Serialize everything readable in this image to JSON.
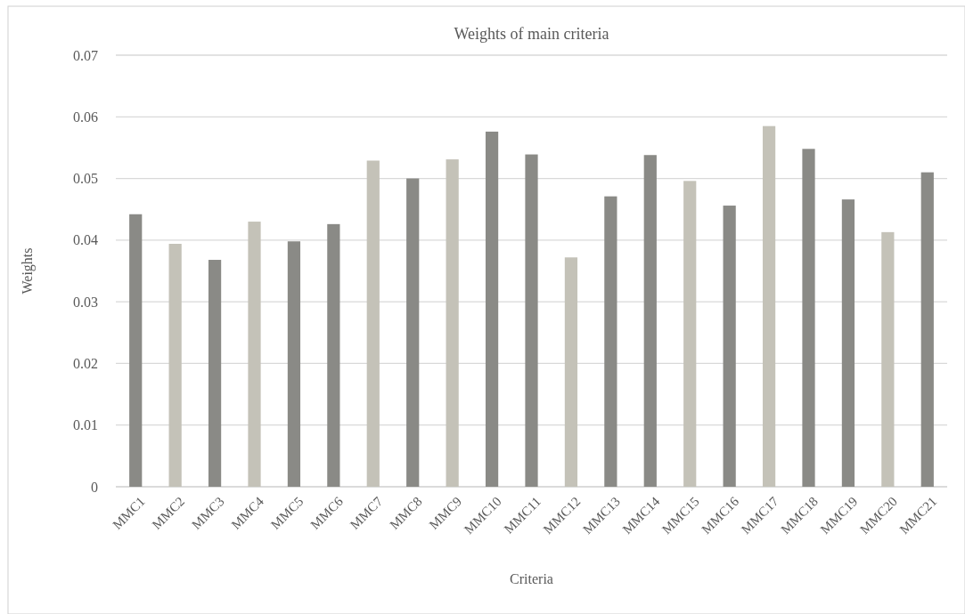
{
  "chart_data": {
    "type": "bar",
    "title": "Weights of main criteria",
    "xlabel": "Criteria",
    "ylabel": "Weights",
    "categories": [
      "MMC1",
      "MMC2",
      "MMC3",
      "MMC4",
      "MMC5",
      "MMC6",
      "MMC7",
      "MMC8",
      "MMC9",
      "MMC10",
      "MMC11",
      "MMC12",
      "MMC13",
      "MMC14",
      "MMC15",
      "MMC16",
      "MMC17",
      "MMC18",
      "MMC19",
      "MMC20",
      "MMC21"
    ],
    "values": [
      0.0442,
      0.0394,
      0.0368,
      0.043,
      0.0398,
      0.0426,
      0.0529,
      0.05,
      0.0531,
      0.0576,
      0.0539,
      0.0372,
      0.0471,
      0.0538,
      0.0496,
      0.0456,
      0.0585,
      0.0548,
      0.0466,
      0.0413,
      0.051
    ],
    "colors": [
      "#8a8a86",
      "#c4c2b8",
      "#8a8a86",
      "#c4c2b8",
      "#8a8a86",
      "#8a8a86",
      "#c4c2b8",
      "#8a8a86",
      "#c4c2b8",
      "#8a8a86",
      "#8a8a86",
      "#c4c2b8",
      "#8a8a86",
      "#8a8a86",
      "#c4c2b8",
      "#8a8a86",
      "#c4c2b8",
      "#8a8a86",
      "#8a8a86",
      "#c4c2b8",
      "#8a8a86"
    ],
    "ylim": [
      0,
      0.07
    ],
    "yticks": [
      0,
      0.01,
      0.02,
      0.03,
      0.04,
      0.05,
      0.06,
      0.07
    ],
    "grid": "y"
  }
}
